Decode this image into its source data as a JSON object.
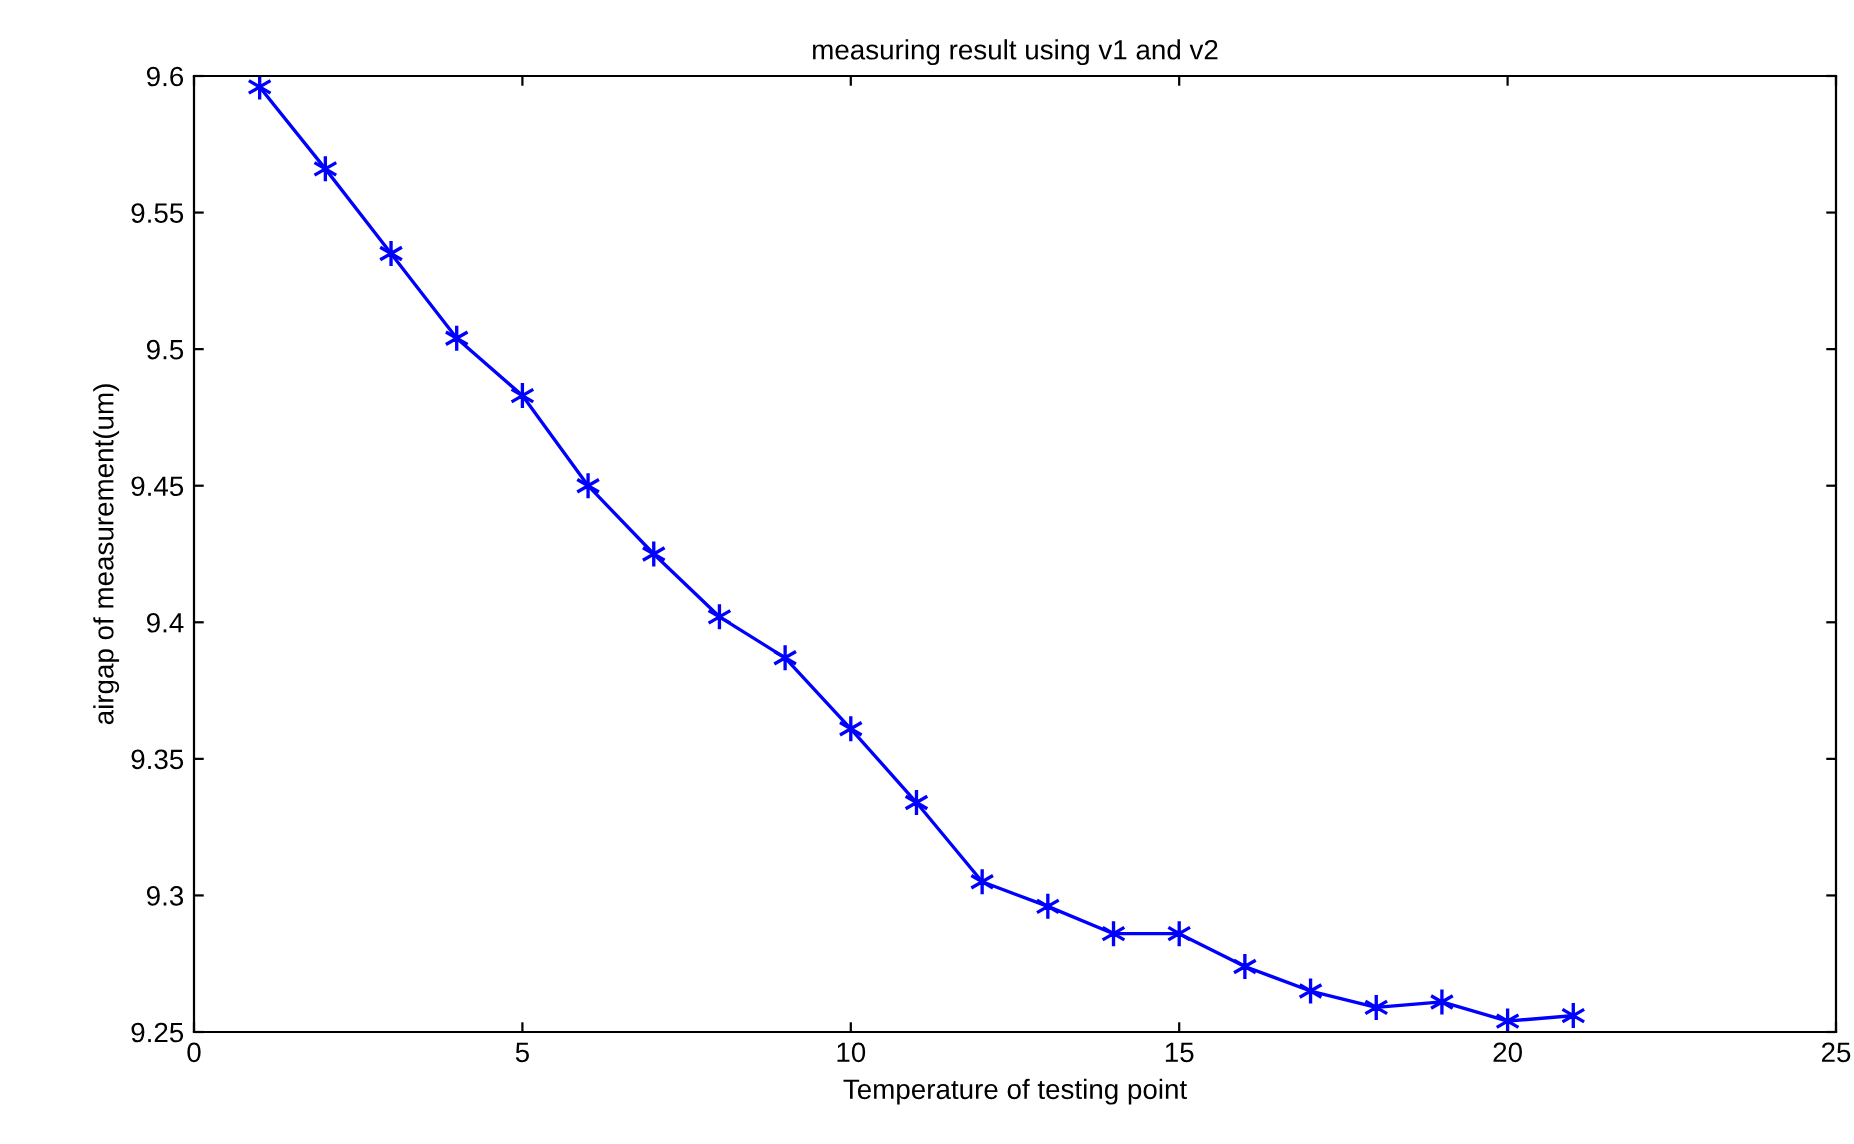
{
  "chart_data": {
    "type": "line",
    "title": "measuring result using v1 and v2",
    "xlabel": "Temperature of testing point",
    "ylabel": "airgap of measurement(um)",
    "x": [
      1,
      2,
      3,
      4,
      5,
      6,
      7,
      8,
      9,
      10,
      11,
      12,
      13,
      14,
      15,
      16,
      17,
      18,
      19,
      20,
      21
    ],
    "series": [
      {
        "color": "#0000ff",
        "values": [
          9.596,
          9.566,
          9.535,
          9.504,
          9.483,
          9.45,
          9.425,
          9.402,
          9.387,
          9.361,
          9.334,
          9.305,
          9.296,
          9.286,
          9.286,
          9.274,
          9.265,
          9.259,
          9.261,
          9.254,
          9.256
        ]
      }
    ],
    "xlim": [
      0,
      25
    ],
    "xticks": [
      0,
      5,
      10,
      15,
      20,
      25
    ],
    "ylim": [
      9.25,
      9.6
    ],
    "yticks": [
      9.25,
      9.3,
      9.35,
      9.4,
      9.45,
      9.5,
      9.55,
      9.6
    ],
    "grid": false,
    "legend": false,
    "marker": "cross",
    "line_style": "solid"
  }
}
